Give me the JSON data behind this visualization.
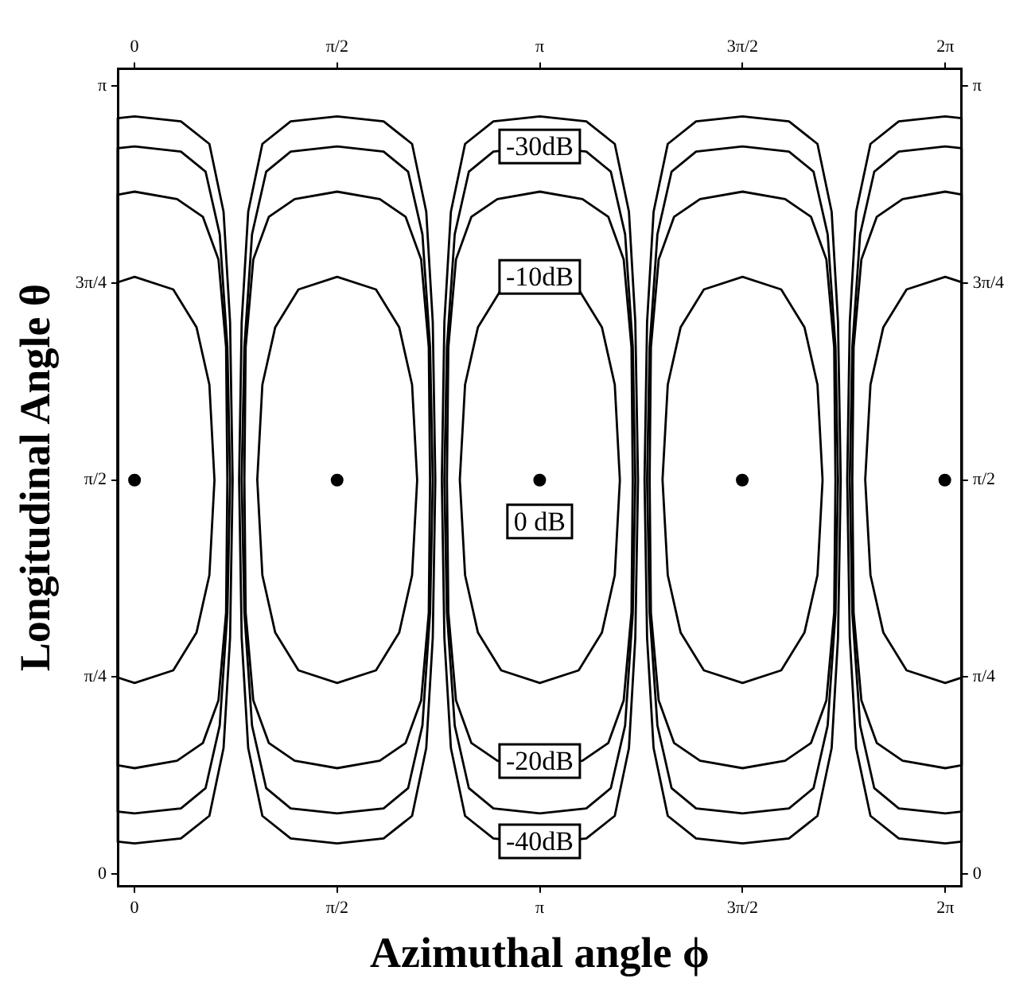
{
  "chart_data": {
    "type": "scatter",
    "marker": "circle",
    "xlabel": "Azimuthal angle ϕ",
    "ylabel": "Longitudinal Angle θ",
    "grid": false,
    "xlim": [
      -0.13,
      6.41
    ],
    "ylim": [
      -0.05,
      3.21
    ],
    "x2lim": [
      -0.13,
      6.41
    ],
    "y2lim": [
      -0.05,
      3.21
    ],
    "xticks": [
      0,
      {
        "value": 1.5708,
        "label": "π/2"
      },
      {
        "value": 3.1416,
        "label": "π"
      },
      {
        "value": 4.7124,
        "label": "3π/2"
      },
      {
        "value": 6.2832,
        "label": "2π"
      }
    ],
    "x2ticks": [
      0,
      {
        "value": 1.5708,
        "label": "π/2"
      },
      {
        "value": 3.1416,
        "label": "π"
      },
      {
        "value": 4.7124,
        "label": "3π/2"
      },
      {
        "value": 6.2832,
        "label": "2π"
      }
    ],
    "yticks": [
      0,
      {
        "value": 0.7854,
        "label": "π/4"
      },
      {
        "value": 1.5708,
        "label": "π/2"
      },
      {
        "value": 2.3562,
        "label": "3π/4"
      },
      {
        "value": 3.1416,
        "label": "π"
      }
    ],
    "y2ticks": [
      0,
      {
        "value": 0.7854,
        "label": "π/4"
      },
      {
        "value": 1.5708,
        "label": "π/2"
      },
      {
        "value": 2.3562,
        "label": "3π/4"
      },
      {
        "value": 3.1416,
        "label": "π"
      }
    ],
    "series": [
      {
        "color": "#000000",
        "x": [
          0,
          1.57,
          3.14,
          4.71,
          6.28
        ],
        "values": [
          1.57,
          1.57,
          1.57,
          1.57,
          1.57
        ]
      }
    ],
    "annotations": [
      "-30dB",
      "-10dB",
      {
        "text": "0 dB",
        "x": 3.14,
        "y": 1.57
      },
      "-20dB",
      "-40dB"
    ]
  }
}
